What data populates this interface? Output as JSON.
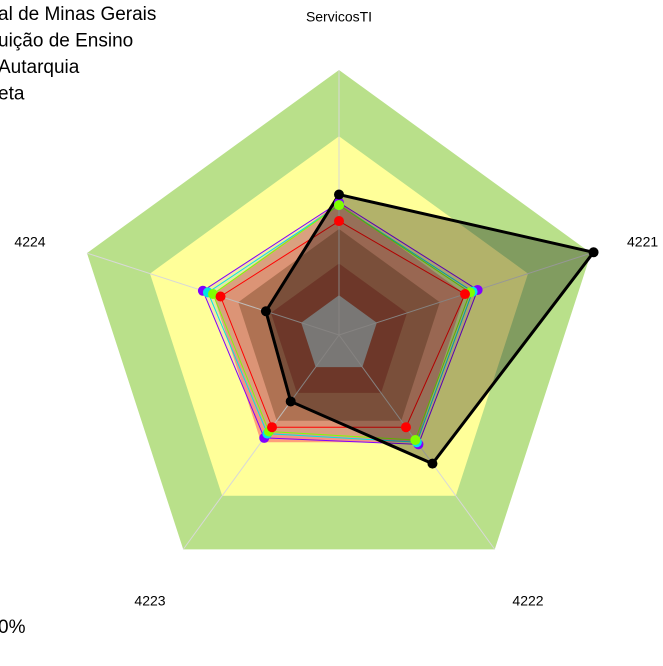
{
  "chart_data": {
    "type": "radar",
    "categories": [
      "ServicosTI",
      "4221",
      "4222",
      "4223",
      "4224"
    ],
    "rlim": [
      0,
      100
    ],
    "bands": [
      {
        "to": 100,
        "color": "#b9e08a"
      },
      {
        "to": 75,
        "color": "#ffff99"
      },
      {
        "to": 50,
        "color": "#ffa07a"
      },
      {
        "to": 40,
        "color": "#c2714a"
      },
      {
        "to": 27,
        "color": "#a8402a"
      },
      {
        "to": 15,
        "color": "#c0c0c0"
      }
    ],
    "series": [
      {
        "name": "al de Minas Gerais",
        "color": "#8000ff",
        "values": [
          50,
          55,
          51,
          48,
          54
        ]
      },
      {
        "name": "uição de Ensino",
        "color": "#00e5e5",
        "values": [
          49,
          53,
          50,
          46,
          52
        ]
      },
      {
        "name": "Autarquia",
        "color": "#80ff00",
        "values": [
          49,
          52,
          49,
          45,
          50
        ]
      },
      {
        "color": "#ff0000",
        "values": [
          43,
          50,
          43,
          43,
          47
        ]
      },
      {
        "name": "eta",
        "color": "#000000",
        "values": [
          53,
          101,
          60,
          31,
          29
        ]
      }
    ],
    "annotation": "0%"
  }
}
